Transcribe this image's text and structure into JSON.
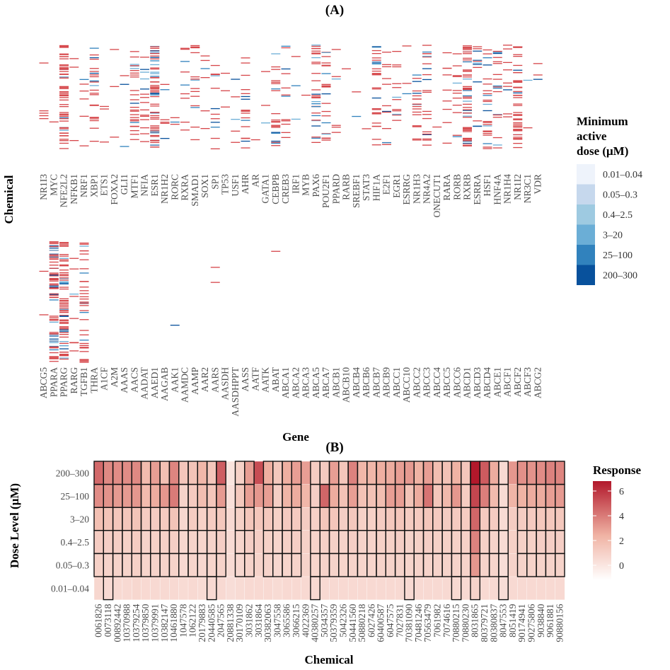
{
  "chart_data": [
    {
      "panel": "(A)",
      "type": "heatmap",
      "title": "(A)",
      "xlabel": "Gene",
      "ylabel": "Chemical",
      "genes_row1": [
        "NR1I3",
        "MYC",
        "NFE2L2",
        "NFKB1",
        "NRF1",
        "XBP1",
        "ETS1",
        "FOXA2",
        "GLI1",
        "MTF1",
        "NFIA",
        "ESR1",
        "NR1H2",
        "RORC",
        "RXRA",
        "SMAD1",
        "SOX1",
        "SP1",
        "TP53",
        "USF1",
        "AHR",
        "AR",
        "GATA1",
        "CEBPB",
        "CREB3",
        "IRF1",
        "MYB",
        "PAX6",
        "POU2F1",
        "PPARD",
        "RARB",
        "SREBF1",
        "STAT3",
        "HIF1A",
        "E2F1",
        "EGR1",
        "ESRRG",
        "NR1H3",
        "NR4A2",
        "ONECUT1",
        "RARA",
        "RORB",
        "RXRB",
        "ESRRA",
        "HSF1",
        "HNF4A",
        "NR1H4",
        "NR1I2",
        "NR3C1",
        "VDR"
      ],
      "genes_row2": [
        "ABCG5",
        "PPARA",
        "PPARG",
        "RARG",
        "TGFB1",
        "THRA",
        "A1CF",
        "A2M",
        "AAAS",
        "AACS",
        "AADAT",
        "AAED1",
        "AAGAB",
        "AAK1",
        "AAMDC",
        "AAMP",
        "AAR2",
        "AARS",
        "AASDH",
        "AASDHPPT",
        "AASS",
        "AATF",
        "AATK",
        "ABAT",
        "ABCA1",
        "ABCA2",
        "ABCA3",
        "ABCA5",
        "ABCA7",
        "ABCB1",
        "ABCB10",
        "ABCB4",
        "ABCB6",
        "ABCB7",
        "ABCB9",
        "ABCC1",
        "ABCC10",
        "ABCC2",
        "ABCC3",
        "ABCC4",
        "ABCC5",
        "ABCC6",
        "ABCD1",
        "ABCD3",
        "ABCD4",
        "ABCE1",
        "ABCF1",
        "ABCF2",
        "ABCF3",
        "ABCG2"
      ],
      "density_row1": [
        0.08,
        0.02,
        0.95,
        0.05,
        0.1,
        0.4,
        0.05,
        0.05,
        0.05,
        0.45,
        0.25,
        1.0,
        0.1,
        0.05,
        0.15,
        0.25,
        0.1,
        0.2,
        0.05,
        0.08,
        0.3,
        0.02,
        0.05,
        0.35,
        0.2,
        0.05,
        0.02,
        0.5,
        0.35,
        0.1,
        0.02,
        0.03,
        0.02,
        0.45,
        0.2,
        0.2,
        0.05,
        0.3,
        0.35,
        0.02,
        0.15,
        0.2,
        0.9,
        0.2,
        0.4,
        0.3,
        0.15,
        0.7,
        0.03,
        0.05
      ],
      "density_row2": [
        0.02,
        0.95,
        1.0,
        0.1,
        0.45,
        0,
        0,
        0,
        0,
        0,
        0,
        0,
        0,
        0.01,
        0,
        0,
        0,
        0.02,
        0,
        0,
        0,
        0,
        0,
        0.01,
        0,
        0,
        0,
        0,
        0,
        0,
        0,
        0,
        0,
        0,
        0,
        0,
        0,
        0,
        0,
        0,
        0,
        0,
        0,
        0,
        0,
        0,
        0,
        0,
        0,
        0
      ],
      "legend_title": [
        "Minimum",
        "active",
        "dose (μM)"
      ],
      "dose_levels": [
        "0.01–0.04",
        "0.05–0.3",
        "0.4–2.5",
        "3–20",
        "25–100",
        "200–300"
      ],
      "dose_colors": [
        "#eef3fb",
        "#c6d8ed",
        "#9ecae1",
        "#6baed6",
        "#3182bd",
        "#08519c"
      ],
      "hit_color": "#d6464a"
    },
    {
      "panel": "(B)",
      "type": "heatmap",
      "title": "(B)",
      "xlabel": "Chemical",
      "ylabel": "Dose Level (μM)",
      "dose_levels": [
        "200–300",
        "25–100",
        "3–20",
        "0.4–2.5",
        "0.05–0.3",
        "0.01–0.04"
      ],
      "chemicals": [
        "0061826",
        "0073118",
        "00892442",
        "10370988",
        "10379254",
        "10379850",
        "10379991",
        "10382147",
        "10461880",
        "1047578",
        "1062122",
        "20179883",
        "20440585",
        "2047565",
        "20881338",
        "30170109",
        "3031862",
        "3031864",
        "30382063",
        "3047558",
        "3065586",
        "3066215",
        "4022369",
        "40380257",
        "5034357",
        "50379359",
        "5042326",
        "50441560",
        "50880218",
        "6027426",
        "60400587",
        "6047575",
        "7027831",
        "70381090",
        "70481246",
        "70563479",
        "7061982",
        "7074616",
        "70880215",
        "70880230",
        "8031865",
        "80379721",
        "80380837",
        "8047553",
        "8051419",
        "90174941",
        "90275806",
        "9038840",
        "9061881",
        "90880156"
      ],
      "response": [
        [
          4.5,
          3.6,
          3.5,
          3.5,
          3.6,
          2.0,
          3.0,
          1.8,
          3.7,
          1.5,
          1.6,
          2.2,
          1.5,
          4.8,
          0.1,
          1.0,
          3.0,
          5.3,
          2.5,
          1.4,
          2.5,
          3.0,
          3.0,
          1.2,
          1.3,
          3.0,
          1.5,
          3.8,
          2.2,
          2.2,
          2.5,
          2.6,
          3.0,
          3.1,
          2.4,
          3.0,
          1.9,
          1.7,
          2.4,
          1.5,
          6.8,
          4.9,
          2.6,
          0.6,
          3.2,
          3.4,
          3.3,
          3.5,
          3.8,
          3.7
        ],
        [
          3.5,
          3.3,
          3.1,
          3.1,
          3.2,
          2.0,
          2.6,
          3.2,
          4.0,
          0.9,
          1.3,
          1.9,
          1.5,
          3.1,
          0.3,
          1.4,
          3.0,
          3.2,
          3.0,
          1.1,
          2.3,
          2.6,
          2.2,
          1.1,
          4.6,
          2.6,
          1.7,
          3.0,
          1.7,
          1.7,
          1.9,
          3.0,
          3.0,
          1.6,
          2.6,
          4.2,
          1.5,
          2.1,
          3.2,
          1.2,
          5.5,
          3.9,
          2.0,
          0.5,
          2.3,
          2.4,
          2.6,
          2.6,
          3.0,
          3.1
        ],
        [
          1.8,
          1.6,
          1.5,
          1.5,
          1.6,
          1.2,
          1.2,
          1.3,
          1.6,
          0.7,
          1.2,
          1.0,
          1.2,
          1.4,
          0.6,
          1.0,
          1.5,
          1.5,
          1.4,
          1.0,
          1.3,
          1.3,
          1.2,
          1.0,
          1.5,
          1.5,
          1.1,
          1.4,
          1.0,
          1.0,
          1.2,
          1.4,
          1.5,
          1.2,
          1.3,
          1.5,
          1.3,
          1.2,
          1.3,
          1.2,
          4.6,
          1.3,
          1.2,
          0.5,
          1.2,
          1.2,
          1.3,
          1.4,
          1.4,
          1.4
        ],
        [
          1.2,
          1.1,
          1.1,
          1.0,
          1.2,
          0.9,
          1.0,
          1.0,
          1.1,
          0.7,
          0.9,
          0.8,
          0.9,
          1.1,
          0.5,
          0.8,
          1.1,
          1.1,
          1.0,
          0.8,
          1.0,
          1.1,
          1.0,
          0.9,
          1.0,
          1.0,
          0.9,
          1.1,
          0.9,
          0.9,
          1.0,
          1.0,
          1.1,
          0.9,
          1.0,
          1.1,
          1.0,
          1.0,
          1.0,
          1.0,
          3.8,
          1.0,
          0.9,
          0.5,
          1.0,
          1.0,
          1.0,
          1.1,
          1.1,
          1.1
        ],
        [
          1.0,
          0.9,
          0.9,
          0.9,
          1.0,
          0.8,
          0.9,
          0.9,
          0.9,
          0.6,
          0.8,
          0.7,
          0.8,
          0.9,
          0.5,
          0.7,
          0.9,
          0.9,
          0.9,
          0.7,
          0.8,
          0.9,
          0.9,
          0.8,
          0.9,
          0.9,
          0.8,
          0.9,
          0.8,
          0.8,
          0.9,
          0.9,
          0.9,
          0.8,
          0.9,
          0.9,
          0.9,
          0.9,
          0.9,
          0.9,
          3.2,
          0.9,
          0.8,
          0.4,
          0.9,
          0.9,
          0.9,
          0.9,
          0.9,
          0.9
        ],
        [
          0.7,
          0.6,
          0.6,
          0.6,
          0.7,
          0.6,
          0.6,
          0.6,
          0.6,
          0.5,
          0.6,
          0.5,
          0.6,
          0.6,
          0.4,
          0.5,
          0.6,
          0.6,
          0.6,
          0.5,
          0.6,
          0.6,
          0.6,
          0.6,
          0.6,
          0.6,
          0.6,
          0.6,
          0.6,
          0.6,
          0.6,
          0.6,
          0.6,
          0.6,
          0.6,
          0.6,
          0.6,
          0.6,
          0.6,
          0.6,
          0.9,
          0.6,
          0.6,
          0.4,
          0.6,
          0.6,
          0.6,
          0.6,
          0.6,
          0.6
        ]
      ],
      "boxed_cells": [
        [
          0,
          3
        ],
        [
          1,
          2
        ],
        [
          2,
          2
        ],
        [
          3,
          2
        ],
        [
          4,
          2
        ],
        [
          5,
          2
        ],
        [
          6,
          2
        ],
        [
          7,
          3
        ],
        [
          8,
          2
        ],
        [
          9,
          1
        ],
        [
          10,
          1
        ],
        [
          11,
          1
        ],
        [
          12,
          2
        ],
        [
          13,
          1
        ],
        [
          15,
          1
        ],
        [
          16,
          2
        ],
        [
          18,
          2
        ],
        [
          19,
          2
        ],
        [
          20,
          2
        ],
        [
          21,
          2
        ],
        [
          23,
          1
        ],
        [
          24,
          2
        ],
        [
          25,
          1
        ],
        [
          26,
          1
        ],
        [
          27,
          1
        ],
        [
          28,
          2
        ],
        [
          29,
          2
        ],
        [
          30,
          2
        ],
        [
          31,
          2
        ],
        [
          32,
          2
        ],
        [
          33,
          1
        ],
        [
          34,
          1
        ],
        [
          35,
          1
        ],
        [
          36,
          1
        ],
        [
          37,
          1
        ],
        [
          38,
          1
        ],
        [
          39,
          1
        ],
        [
          40,
          1
        ],
        [
          41,
          1
        ],
        [
          42,
          1
        ],
        [
          43,
          1
        ],
        [
          45,
          2
        ],
        [
          46,
          2
        ],
        [
          47,
          2
        ],
        [
          48,
          1
        ],
        [
          49,
          1
        ],
        [
          1,
          0
        ],
        [
          12,
          0
        ],
        [
          23,
          0
        ],
        [
          33,
          0
        ],
        [
          38,
          0
        ],
        [
          40,
          0
        ],
        [
          43,
          0
        ]
      ],
      "legend_title": "Response",
      "legend_ticks": [
        6,
        4,
        2,
        0
      ],
      "colorscale": {
        "min": -1.2,
        "max": 6.8,
        "low": "#ffffff",
        "high": "#b2182b"
      }
    }
  ]
}
